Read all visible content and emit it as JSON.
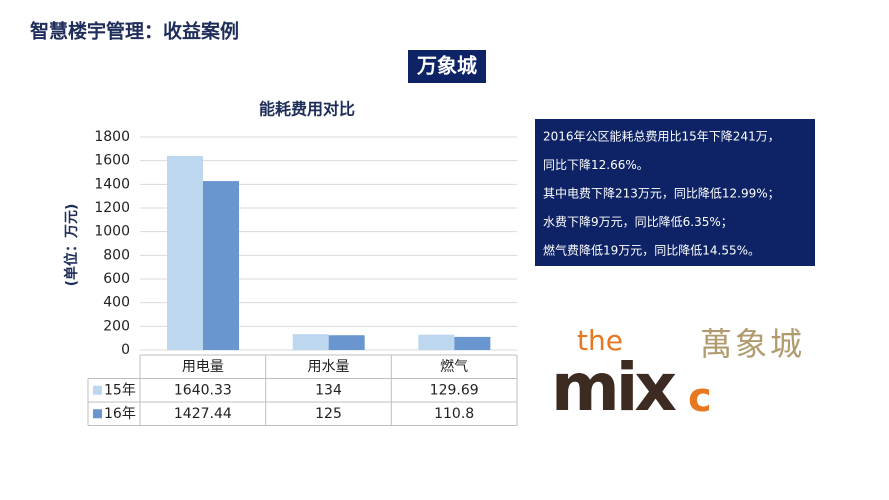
{
  "page_title": "智慧楼宇管理：收益案例",
  "badge": "万象城",
  "chart_data": {
    "type": "bar",
    "title": "能耗费用对比",
    "y_label": "(单位：万元)",
    "categories": [
      "用电量",
      "用水量",
      "燃气"
    ],
    "series": [
      {
        "name": "15年",
        "color": "#bdd7ee",
        "values": [
          1640.33,
          134,
          129.69
        ]
      },
      {
        "name": "16年",
        "color": "#6a96d0",
        "values": [
          1427.44,
          125,
          110.8
        ]
      }
    ],
    "ylim": [
      0,
      1800
    ],
    "yticks": [
      0,
      200,
      400,
      600,
      800,
      1000,
      1200,
      1400,
      1600,
      1800
    ],
    "grid": true
  },
  "info": [
    "2016年公区能耗总费用比15年下降241万，",
    "同比下降12.66%。",
    "其中电费下降213万元，同比降低12.99%；",
    "水费下降9万元，同比降低6.35%；",
    "燃气费降低19万元，同比降低14.55%。"
  ],
  "logo": {
    "prefix": "the",
    "word": "mix",
    "suffix": "c",
    "chinese": "萬象城"
  }
}
